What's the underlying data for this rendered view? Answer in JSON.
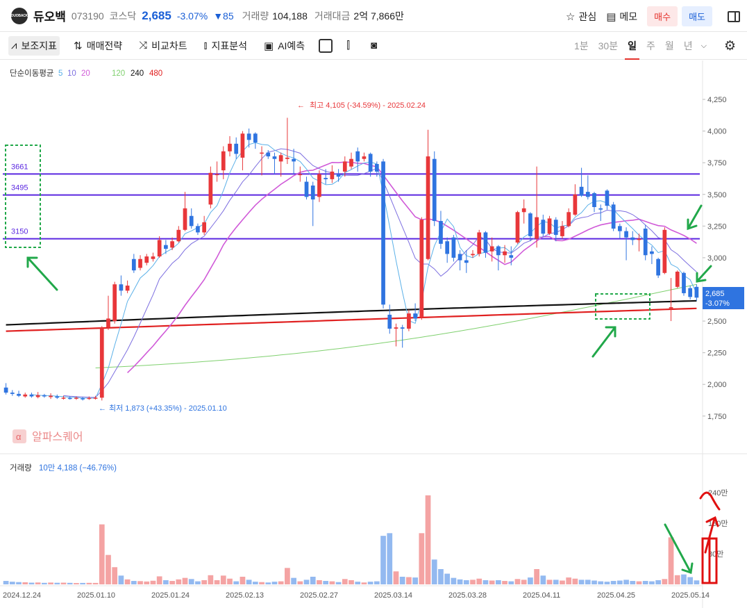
{
  "header": {
    "logo_text": "DUOBACK",
    "name": "듀오백",
    "code": "073190",
    "market": "코스닥",
    "price": "2,685",
    "change_pct": "-3.07%",
    "change_abs": "▼85",
    "volume_label": "거래량",
    "volume": "104,188",
    "amount_label": "거래대금",
    "amount": "2억 7,866만",
    "watch_label": "관심",
    "memo_label": "메모",
    "buy_label": "매수",
    "sell_label": "매도"
  },
  "toolbar": {
    "items": [
      "보조지표",
      "매매전략",
      "비교차트",
      "지표분석",
      "AI예측"
    ],
    "periods": [
      "1분",
      "30분",
      "일",
      "주",
      "월",
      "년"
    ],
    "active_period": "일"
  },
  "colors": {
    "up": "#e8373a",
    "down": "#2f74e0",
    "up_vol": "#f4a3a3",
    "down_vol": "#93b9f0"
  },
  "chart_data": {
    "type": "candlestick",
    "ma_legend": {
      "title": "단순이동평균",
      "periods": [
        {
          "label": "5",
          "color": "#5ab0e8"
        },
        {
          "label": "10",
          "color": "#7d6fe0"
        },
        {
          "label": "20",
          "color": "#d05ad8"
        },
        {
          "label": "120",
          "color": "#7fd06e"
        },
        {
          "label": "240",
          "color": "#111111"
        },
        {
          "label": "480",
          "color": "#e02020"
        }
      ]
    },
    "y_ticks": [
      "4,250",
      "4,000",
      "3,750",
      "3,500",
      "3,250",
      "3,000",
      "2,750",
      "2,500",
      "2,250",
      "2,000",
      "1,750"
    ],
    "ylim": [
      1650,
      4360
    ],
    "x_labels": [
      "2024.12.24",
      "2025.01.10",
      "2025.01.24",
      "2025.02.13",
      "2025.02.27",
      "2025.03.14",
      "2025.03.28",
      "2025.04.11",
      "2025.04.25",
      "2025.05.14"
    ],
    "max_annotation": "최고 4,105 (-34.59%) - 2025.02.24",
    "min_annotation": "최저 1,873 (+43.35%) - 2025.01.10",
    "last_price": "2,685",
    "last_change": "-3.07%",
    "horizontal_lines": [
      {
        "label": "3661",
        "value": 3661
      },
      {
        "label": "3495",
        "value": 3495
      },
      {
        "label": "3150",
        "value": 3150
      }
    ],
    "watermark": "알파스퀘어",
    "volume_panel": {
      "label": "거래량",
      "value_text": "10만 4,188 (−46.76%)",
      "y_ticks": [
        "240만",
        "160만",
        "80만"
      ],
      "ylim": [
        0,
        2800000
      ]
    },
    "candles": [
      {
        "o": 1975,
        "c": 1935,
        "h": 2010,
        "l": 1920,
        "v": 90000
      },
      {
        "o": 1935,
        "c": 1925,
        "h": 1955,
        "l": 1910,
        "v": 70000
      },
      {
        "o": 1925,
        "c": 1910,
        "h": 1950,
        "l": 1900,
        "v": 60000
      },
      {
        "o": 1905,
        "c": 1920,
        "h": 1935,
        "l": 1895,
        "v": 55000
      },
      {
        "o": 1920,
        "c": 1905,
        "h": 1935,
        "l": 1895,
        "v": 45000
      },
      {
        "o": 1900,
        "c": 1915,
        "h": 1940,
        "l": 1890,
        "v": 50000
      },
      {
        "o": 1915,
        "c": 1905,
        "h": 1925,
        "l": 1895,
        "v": 40000
      },
      {
        "o": 1900,
        "c": 1910,
        "h": 1930,
        "l": 1885,
        "v": 48000
      },
      {
        "o": 1905,
        "c": 1895,
        "h": 1920,
        "l": 1885,
        "v": 42000
      },
      {
        "o": 1890,
        "c": 1895,
        "h": 1910,
        "l": 1880,
        "v": 45000
      },
      {
        "o": 1893,
        "c": 1888,
        "h": 1905,
        "l": 1880,
        "v": 40000
      },
      {
        "o": 1888,
        "c": 1895,
        "h": 1905,
        "l": 1878,
        "v": 35000
      },
      {
        "o": 1890,
        "c": 1885,
        "h": 1900,
        "l": 1873,
        "v": 38000
      },
      {
        "o": 1885,
        "c": 1893,
        "h": 1905,
        "l": 1878,
        "v": 40000
      },
      {
        "o": 1893,
        "c": 1895,
        "h": 1910,
        "l": 1880,
        "v": 38000
      },
      {
        "o": 1895,
        "c": 2445,
        "h": 2460,
        "l": 1873,
        "v": 1570000
      },
      {
        "o": 2450,
        "c": 2520,
        "h": 2700,
        "l": 2430,
        "v": 770000
      },
      {
        "o": 2500,
        "c": 2790,
        "h": 2810,
        "l": 2480,
        "v": 450000
      },
      {
        "o": 2790,
        "c": 2740,
        "h": 2860,
        "l": 2700,
        "v": 230000
      },
      {
        "o": 2740,
        "c": 2780,
        "h": 2820,
        "l": 2720,
        "v": 130000
      },
      {
        "o": 2990,
        "c": 2900,
        "h": 3030,
        "l": 2880,
        "v": 90000
      },
      {
        "o": 2920,
        "c": 2990,
        "h": 3020,
        "l": 2900,
        "v": 85000
      },
      {
        "o": 2960,
        "c": 3010,
        "h": 3030,
        "l": 2940,
        "v": 75000
      },
      {
        "o": 2990,
        "c": 3010,
        "h": 3040,
        "l": 2970,
        "v": 95000
      },
      {
        "o": 3010,
        "c": 3140,
        "h": 3170,
        "l": 3000,
        "v": 210000
      },
      {
        "o": 3100,
        "c": 3070,
        "h": 3140,
        "l": 3030,
        "v": 110000
      },
      {
        "o": 3080,
        "c": 3130,
        "h": 3160,
        "l": 3060,
        "v": 90000
      },
      {
        "o": 3130,
        "c": 3220,
        "h": 3250,
        "l": 3120,
        "v": 130000
      },
      {
        "o": 3220,
        "c": 3390,
        "h": 3520,
        "l": 3210,
        "v": 170000
      },
      {
        "o": 3330,
        "c": 3250,
        "h": 3390,
        "l": 3230,
        "v": 140000
      },
      {
        "o": 3250,
        "c": 3200,
        "h": 3270,
        "l": 3180,
        "v": 80000
      },
      {
        "o": 3200,
        "c": 3280,
        "h": 3330,
        "l": 3180,
        "v": 110000
      },
      {
        "o": 3420,
        "c": 3670,
        "h": 3720,
        "l": 3390,
        "v": 240000
      },
      {
        "o": 3660,
        "c": 3660,
        "h": 3760,
        "l": 3600,
        "v": 110000
      },
      {
        "o": 3690,
        "c": 3840,
        "h": 3880,
        "l": 3620,
        "v": 230000
      },
      {
        "o": 3840,
        "c": 3900,
        "h": 3960,
        "l": 3800,
        "v": 150000
      },
      {
        "o": 3900,
        "c": 3820,
        "h": 3950,
        "l": 3780,
        "v": 80000
      },
      {
        "o": 3790,
        "c": 3980,
        "h": 4000,
        "l": 3690,
        "v": 200000
      },
      {
        "o": 3980,
        "c": 3930,
        "h": 4020,
        "l": 3870,
        "v": 120000
      },
      {
        "o": 3980,
        "c": 3910,
        "h": 3990,
        "l": 3860,
        "v": 70000
      },
      {
        "o": 3830,
        "c": 3830,
        "h": 3880,
        "l": 3650,
        "v": 60000
      },
      {
        "o": 3830,
        "c": 3800,
        "h": 3850,
        "l": 3780,
        "v": 50000
      },
      {
        "o": 3800,
        "c": 3780,
        "h": 3830,
        "l": 3660,
        "v": 70000
      },
      {
        "o": 3760,
        "c": 3810,
        "h": 3830,
        "l": 3640,
        "v": 80000
      },
      {
        "o": 3780,
        "c": 3790,
        "h": 4105,
        "l": 3740,
        "v": 430000
      },
      {
        "o": 3780,
        "c": 3760,
        "h": 3860,
        "l": 3660,
        "v": 170000
      },
      {
        "o": 3660,
        "c": 3660,
        "h": 3720,
        "l": 3600,
        "v": 80000
      },
      {
        "o": 3600,
        "c": 3480,
        "h": 3640,
        "l": 3460,
        "v": 120000
      },
      {
        "o": 3570,
        "c": 3460,
        "h": 3600,
        "l": 3250,
        "v": 200000
      },
      {
        "o": 3480,
        "c": 3660,
        "h": 3690,
        "l": 3440,
        "v": 110000
      },
      {
        "o": 3630,
        "c": 3620,
        "h": 3700,
        "l": 3580,
        "v": 90000
      },
      {
        "o": 3620,
        "c": 3680,
        "h": 3730,
        "l": 3590,
        "v": 80000
      },
      {
        "o": 3660,
        "c": 3640,
        "h": 3700,
        "l": 3600,
        "v": 60000
      },
      {
        "o": 3680,
        "c": 3760,
        "h": 3800,
        "l": 3640,
        "v": 140000
      },
      {
        "o": 3720,
        "c": 3780,
        "h": 3830,
        "l": 3700,
        "v": 110000
      },
      {
        "o": 3840,
        "c": 3760,
        "h": 3870,
        "l": 3680,
        "v": 70000
      },
      {
        "o": 3780,
        "c": 3800,
        "h": 3830,
        "l": 3760,
        "v": 50000
      },
      {
        "o": 3820,
        "c": 3680,
        "h": 3830,
        "l": 3640,
        "v": 70000
      },
      {
        "o": 3740,
        "c": 3680,
        "h": 3760,
        "l": 3640,
        "v": 80000
      },
      {
        "o": 3760,
        "c": 2630,
        "h": 3780,
        "l": 2600,
        "v": 1270000
      },
      {
        "o": 2550,
        "c": 2440,
        "h": 2630,
        "l": 2400,
        "v": 1340000
      },
      {
        "o": 2440,
        "c": 2450,
        "h": 2480,
        "l": 2300,
        "v": 340000
      },
      {
        "o": 2450,
        "c": 2440,
        "h": 2470,
        "l": 2290,
        "v": 200000
      },
      {
        "o": 2440,
        "c": 2560,
        "h": 2590,
        "l": 2420,
        "v": 190000
      },
      {
        "o": 2560,
        "c": 2520,
        "h": 2640,
        "l": 2500,
        "v": 180000
      },
      {
        "o": 2530,
        "c": 3300,
        "h": 3320,
        "l": 2510,
        "v": 1340000
      },
      {
        "o": 2990,
        "c": 3800,
        "h": 4010,
        "l": 2980,
        "v": 2330000
      },
      {
        "o": 3780,
        "c": 3290,
        "h": 3840,
        "l": 3250,
        "v": 650000
      },
      {
        "o": 3290,
        "c": 3110,
        "h": 3370,
        "l": 3070,
        "v": 400000
      },
      {
        "o": 3130,
        "c": 3030,
        "h": 3160,
        "l": 2960,
        "v": 280000
      },
      {
        "o": 3160,
        "c": 3000,
        "h": 3180,
        "l": 2970,
        "v": 170000
      },
      {
        "o": 3030,
        "c": 2980,
        "h": 3060,
        "l": 2900,
        "v": 130000
      },
      {
        "o": 2980,
        "c": 2960,
        "h": 3060,
        "l": 2880,
        "v": 110000
      },
      {
        "o": 3020,
        "c": 3030,
        "h": 3060,
        "l": 3000,
        "v": 120000
      },
      {
        "o": 3030,
        "c": 3200,
        "h": 3220,
        "l": 3010,
        "v": 150000
      },
      {
        "o": 3200,
        "c": 3040,
        "h": 3210,
        "l": 3000,
        "v": 110000
      },
      {
        "o": 3050,
        "c": 3090,
        "h": 3160,
        "l": 2970,
        "v": 100000
      },
      {
        "o": 3090,
        "c": 3020,
        "h": 3100,
        "l": 2900,
        "v": 110000
      },
      {
        "o": 3020,
        "c": 3050,
        "h": 3100,
        "l": 2960,
        "v": 90000
      },
      {
        "o": 3020,
        "c": 3000,
        "h": 3090,
        "l": 2940,
        "v": 80000
      },
      {
        "o": 3120,
        "c": 3360,
        "h": 3370,
        "l": 3110,
        "v": 140000
      },
      {
        "o": 3360,
        "c": 3390,
        "h": 3460,
        "l": 3270,
        "v": 120000
      },
      {
        "o": 3350,
        "c": 3170,
        "h": 3360,
        "l": 3130,
        "v": 180000
      },
      {
        "o": 3150,
        "c": 3320,
        "h": 3720,
        "l": 3080,
        "v": 400000
      },
      {
        "o": 3300,
        "c": 3190,
        "h": 3340,
        "l": 3170,
        "v": 230000
      },
      {
        "o": 3190,
        "c": 3310,
        "h": 3330,
        "l": 3180,
        "v": 120000
      },
      {
        "o": 3300,
        "c": 3180,
        "h": 3320,
        "l": 3130,
        "v": 120000
      },
      {
        "o": 3170,
        "c": 3250,
        "h": 3290,
        "l": 3150,
        "v": 100000
      },
      {
        "o": 3250,
        "c": 3360,
        "h": 3390,
        "l": 3240,
        "v": 180000
      },
      {
        "o": 3340,
        "c": 3500,
        "h": 3580,
        "l": 3330,
        "v": 150000
      },
      {
        "o": 3560,
        "c": 3490,
        "h": 3710,
        "l": 3480,
        "v": 120000
      },
      {
        "o": 3520,
        "c": 3480,
        "h": 3650,
        "l": 3460,
        "v": 120000
      },
      {
        "o": 3510,
        "c": 3400,
        "h": 3520,
        "l": 3360,
        "v": 100000
      },
      {
        "o": 3390,
        "c": 3380,
        "h": 3420,
        "l": 3290,
        "v": 80000
      },
      {
        "o": 3530,
        "c": 3410,
        "h": 3540,
        "l": 3380,
        "v": 70000
      },
      {
        "o": 3420,
        "c": 3230,
        "h": 3440,
        "l": 3210,
        "v": 90000
      },
      {
        "o": 3250,
        "c": 3210,
        "h": 3270,
        "l": 3150,
        "v": 100000
      },
      {
        "o": 3210,
        "c": 3160,
        "h": 3240,
        "l": 2980,
        "v": 120000
      },
      {
        "o": 3160,
        "c": 3140,
        "h": 3210,
        "l": 3100,
        "v": 90000
      },
      {
        "o": 3140,
        "c": 3150,
        "h": 3190,
        "l": 3050,
        "v": 80000
      },
      {
        "o": 3230,
        "c": 3020,
        "h": 3260,
        "l": 2980,
        "v": 90000
      },
      {
        "o": 3050,
        "c": 3030,
        "h": 3090,
        "l": 2950,
        "v": 80000
      },
      {
        "o": 2990,
        "c": 2860,
        "h": 3000,
        "l": 2840,
        "v": 110000
      },
      {
        "o": 2880,
        "c": 3220,
        "h": 3240,
        "l": 2870,
        "v": 140000
      },
      {
        "o": 2600,
        "c": 2610,
        "h": 2840,
        "l": 2500,
        "v": 1230000
      },
      {
        "o": 2770,
        "c": 2890,
        "h": 2900,
        "l": 2760,
        "v": 240000
      },
      {
        "o": 2880,
        "c": 2720,
        "h": 2890,
        "l": 2700,
        "v": 260000
      },
      {
        "o": 2760,
        "c": 2690,
        "h": 2780,
        "l": 2670,
        "v": 190000
      },
      {
        "o": 2770,
        "c": 2685,
        "h": 2790,
        "l": 2660,
        "v": 104188
      }
    ]
  }
}
